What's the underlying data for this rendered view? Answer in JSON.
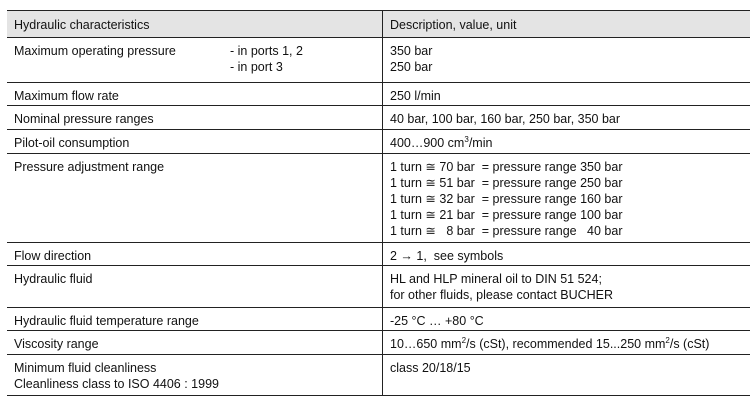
{
  "header": {
    "col1": "Hydraulic characteristics",
    "col2": "Description, value, unit"
  },
  "rows": [
    {
      "label": [
        "Maximum operating pressure"
      ],
      "sublabels": [
        "- in ports 1, 2",
        "- in port 3"
      ],
      "value": [
        [
          "350 bar"
        ],
        [
          "250 bar"
        ]
      ],
      "h": 0
    },
    {
      "label": [
        "Maximum flow rate"
      ],
      "value": [
        [
          "250 l/min"
        ]
      ]
    },
    {
      "label": [
        "Nominal pressure ranges"
      ],
      "value": [
        [
          "40 bar, 100 bar, 160 bar, 250 bar, 350 bar"
        ]
      ]
    },
    {
      "label": [
        "Pilot-oil consumption"
      ],
      "value": [
        [
          "400…900 cm",
          {
            "sup": "3"
          },
          "/min"
        ]
      ]
    },
    {
      "label": [
        "Pressure adjustment range"
      ],
      "value": [
        [
          "1 turn ≅ 70 bar  = pressure range 350 bar"
        ],
        [
          "1 turn ≅ 51 bar  = pressure range 250 bar"
        ],
        [
          "1 turn ≅ 32 bar  = pressure range 160 bar"
        ],
        [
          "1 turn ≅ 21 bar  = pressure range 100 bar"
        ],
        [
          "1 turn ≅   8 bar  = pressure range   40 bar"
        ]
      ]
    },
    {
      "label": [
        "Flow direction"
      ],
      "value": [
        [
          "2 → 1,  see symbols"
        ]
      ]
    },
    {
      "label": [
        "Hydraulic fluid"
      ],
      "value": [
        [
          "HL and HLP mineral oil to DIN 51 524;"
        ],
        [
          "for other fluids, please contact BUCHER"
        ]
      ]
    },
    {
      "label": [
        "Hydraulic fluid temperature range"
      ],
      "value": [
        [
          "-25 °C … +80 °C"
        ]
      ]
    },
    {
      "label": [
        "Viscosity range"
      ],
      "value": [
        [
          "10…650 mm",
          {
            "sup": "2"
          },
          "/s (cSt), recommended 15...250 mm",
          {
            "sup": "2"
          },
          "/s (cSt)"
        ]
      ]
    },
    {
      "label": [
        "Minimum fluid cleanliness",
        "Cleanliness class to ISO 4406 : 1999"
      ],
      "value": [
        [
          "class 20/18/15"
        ]
      ]
    }
  ]
}
